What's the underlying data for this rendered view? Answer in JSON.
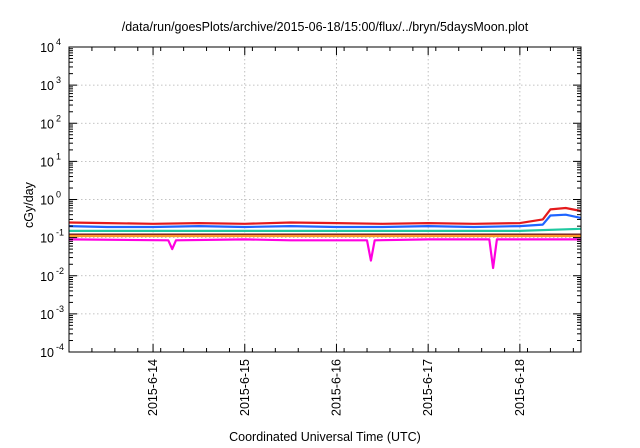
{
  "chart_data": {
    "type": "line",
    "title": "/data/run/goesPlots/archive/2015-06-18/15:00/flux/../bryn/5daysMoon.plot",
    "xlabel": "Coordinated Universal Time (UTC)",
    "ylabel": "cGy/day",
    "yscale": "log",
    "ylim": [
      0.0001,
      10000
    ],
    "ytick_labels": [
      {
        "base": "10",
        "exp": "-4"
      },
      {
        "base": "10",
        "exp": "-3"
      },
      {
        "base": "10",
        "exp": "-2"
      },
      {
        "base": "10",
        "exp": "-1"
      },
      {
        "base": "10",
        "exp": "0"
      },
      {
        "base": "10",
        "exp": "1"
      },
      {
        "base": "10",
        "exp": "2"
      },
      {
        "base": "10",
        "exp": "3"
      },
      {
        "base": "10",
        "exp": "4"
      }
    ],
    "xlim": [
      "2015-06-13T02:00",
      "2015-06-18T16:00"
    ],
    "xtick_labels": [
      "2015-6-14",
      "2015-6-15",
      "2015-6-16",
      "2015-6-17",
      "2015-6-18"
    ],
    "grid": true,
    "series": [
      {
        "color": "#e41a1c",
        "points": [
          [
            "2015-06-13T02:00",
            0.25
          ],
          [
            "2015-06-13T12:00",
            0.24
          ],
          [
            "2015-06-14T00:00",
            0.23
          ],
          [
            "2015-06-14T12:00",
            0.24
          ],
          [
            "2015-06-15T00:00",
            0.23
          ],
          [
            "2015-06-15T12:00",
            0.25
          ],
          [
            "2015-06-16T00:00",
            0.24
          ],
          [
            "2015-06-16T12:00",
            0.23
          ],
          [
            "2015-06-17T00:00",
            0.24
          ],
          [
            "2015-06-17T12:00",
            0.23
          ],
          [
            "2015-06-18T00:00",
            0.24
          ],
          [
            "2015-06-18T06:00",
            0.3
          ],
          [
            "2015-06-18T08:00",
            0.55
          ],
          [
            "2015-06-18T12:00",
            0.6
          ],
          [
            "2015-06-18T16:00",
            0.5
          ]
        ]
      },
      {
        "color": "#1e64ff",
        "points": [
          [
            "2015-06-13T02:00",
            0.2
          ],
          [
            "2015-06-13T12:00",
            0.19
          ],
          [
            "2015-06-14T00:00",
            0.19
          ],
          [
            "2015-06-14T12:00",
            0.2
          ],
          [
            "2015-06-15T00:00",
            0.19
          ],
          [
            "2015-06-15T12:00",
            0.2
          ],
          [
            "2015-06-16T00:00",
            0.19
          ],
          [
            "2015-06-16T12:00",
            0.19
          ],
          [
            "2015-06-17T00:00",
            0.2
          ],
          [
            "2015-06-17T12:00",
            0.19
          ],
          [
            "2015-06-18T00:00",
            0.2
          ],
          [
            "2015-06-18T06:00",
            0.22
          ],
          [
            "2015-06-18T08:00",
            0.38
          ],
          [
            "2015-06-18T12:00",
            0.4
          ],
          [
            "2015-06-18T16:00",
            0.33
          ]
        ]
      },
      {
        "color": "#1fc8a0",
        "points": [
          [
            "2015-06-13T02:00",
            0.15
          ],
          [
            "2015-06-14T00:00",
            0.15
          ],
          [
            "2015-06-15T00:00",
            0.15
          ],
          [
            "2015-06-16T00:00",
            0.15
          ],
          [
            "2015-06-17T00:00",
            0.15
          ],
          [
            "2015-06-18T00:00",
            0.15
          ],
          [
            "2015-06-18T16:00",
            0.17
          ]
        ]
      },
      {
        "color": "#7a1c1c",
        "points": [
          [
            "2015-06-13T02:00",
            0.12
          ],
          [
            "2015-06-14T00:00",
            0.12
          ],
          [
            "2015-06-15T00:00",
            0.12
          ],
          [
            "2015-06-16T00:00",
            0.12
          ],
          [
            "2015-06-17T00:00",
            0.12
          ],
          [
            "2015-06-18T00:00",
            0.12
          ],
          [
            "2015-06-18T16:00",
            0.12
          ]
        ]
      },
      {
        "color": "#ff9a2a",
        "points": [
          [
            "2015-06-13T02:00",
            0.11
          ],
          [
            "2015-06-14T00:00",
            0.11
          ],
          [
            "2015-06-15T00:00",
            0.11
          ],
          [
            "2015-06-16T00:00",
            0.11
          ],
          [
            "2015-06-17T00:00",
            0.11
          ],
          [
            "2015-06-18T00:00",
            0.11
          ],
          [
            "2015-06-18T16:00",
            0.11
          ]
        ]
      },
      {
        "color": "#ff00e0",
        "points": [
          [
            "2015-06-13T02:00",
            0.09
          ],
          [
            "2015-06-14T04:00",
            0.085
          ],
          [
            "2015-06-14T05:00",
            0.05
          ],
          [
            "2015-06-14T06:00",
            0.085
          ],
          [
            "2015-06-15T00:00",
            0.09
          ],
          [
            "2015-06-15T12:00",
            0.085
          ],
          [
            "2015-06-16T08:00",
            0.085
          ],
          [
            "2015-06-16T09:00",
            0.025
          ],
          [
            "2015-06-16T10:00",
            0.085
          ],
          [
            "2015-06-17T00:00",
            0.09
          ],
          [
            "2015-06-17T16:00",
            0.09
          ],
          [
            "2015-06-17T17:00",
            0.016
          ],
          [
            "2015-06-17T18:00",
            0.09
          ],
          [
            "2015-06-18T00:00",
            0.09
          ],
          [
            "2015-06-18T16:00",
            0.09
          ]
        ]
      }
    ]
  }
}
